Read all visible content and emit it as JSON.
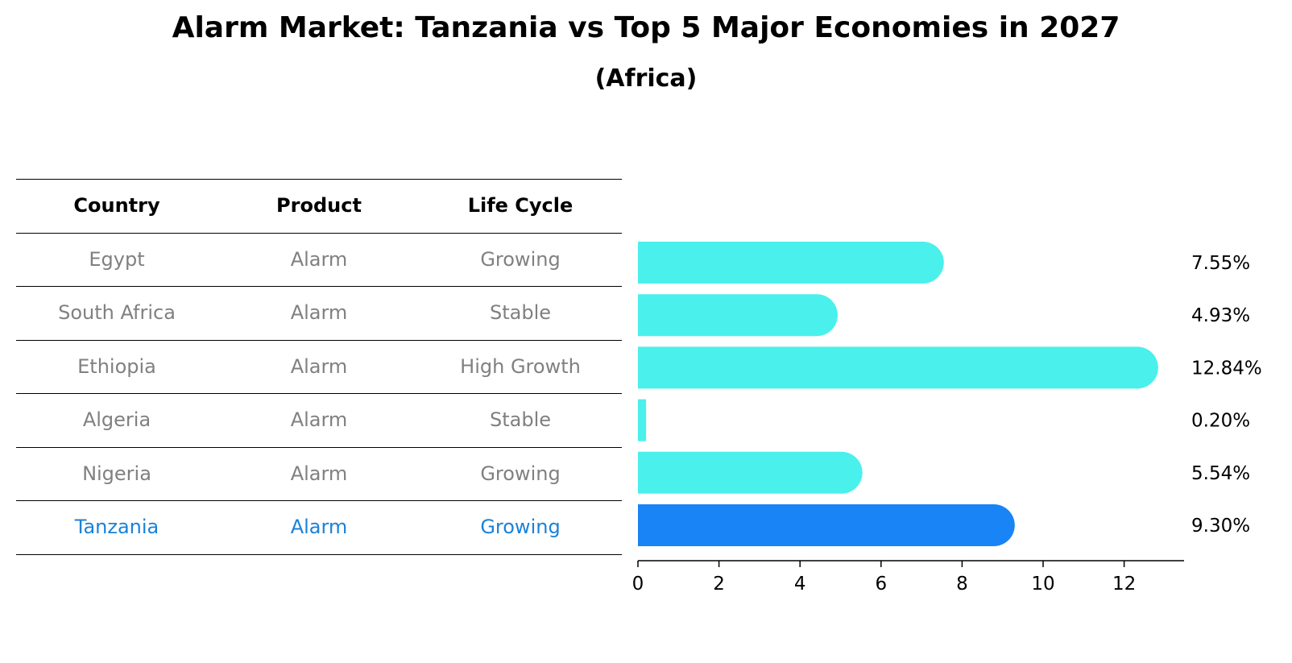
{
  "title": "Alarm Market: Tanzania vs Top 5 Major Economies in 2027",
  "subtitle": "(Africa)",
  "table": {
    "headers": [
      "Country",
      "Product",
      "Life Cycle"
    ],
    "rows": [
      {
        "country": "Egypt",
        "product": "Alarm",
        "life_cycle": "Growing",
        "highlight": false
      },
      {
        "country": "South Africa",
        "product": "Alarm",
        "life_cycle": "Stable",
        "highlight": false
      },
      {
        "country": "Ethiopia",
        "product": "Alarm",
        "life_cycle": "High Growth",
        "highlight": false
      },
      {
        "country": "Algeria",
        "product": "Alarm",
        "life_cycle": "Stable",
        "highlight": false
      },
      {
        "country": "Nigeria",
        "product": "Alarm",
        "life_cycle": "Growing",
        "highlight": false
      },
      {
        "country": "Tanzania",
        "product": "Alarm",
        "life_cycle": "Growing",
        "highlight": true
      }
    ]
  },
  "chart_data": {
    "type": "bar",
    "orientation": "horizontal",
    "categories": [
      "Egypt",
      "South Africa",
      "Ethiopia",
      "Algeria",
      "Nigeria",
      "Tanzania"
    ],
    "values": [
      7.55,
      4.93,
      12.84,
      0.2,
      5.54,
      9.3
    ],
    "value_labels": [
      "7.55%",
      "4.93%",
      "12.84%",
      "0.20%",
      "5.54%",
      "9.30%"
    ],
    "highlight_category": "Tanzania",
    "xlim": [
      0,
      13.5
    ],
    "xticks": [
      0,
      2,
      4,
      6,
      8,
      10,
      12
    ],
    "grid": false,
    "colors": {
      "default": "#4af0ec",
      "highlight": "#1984f5"
    }
  }
}
